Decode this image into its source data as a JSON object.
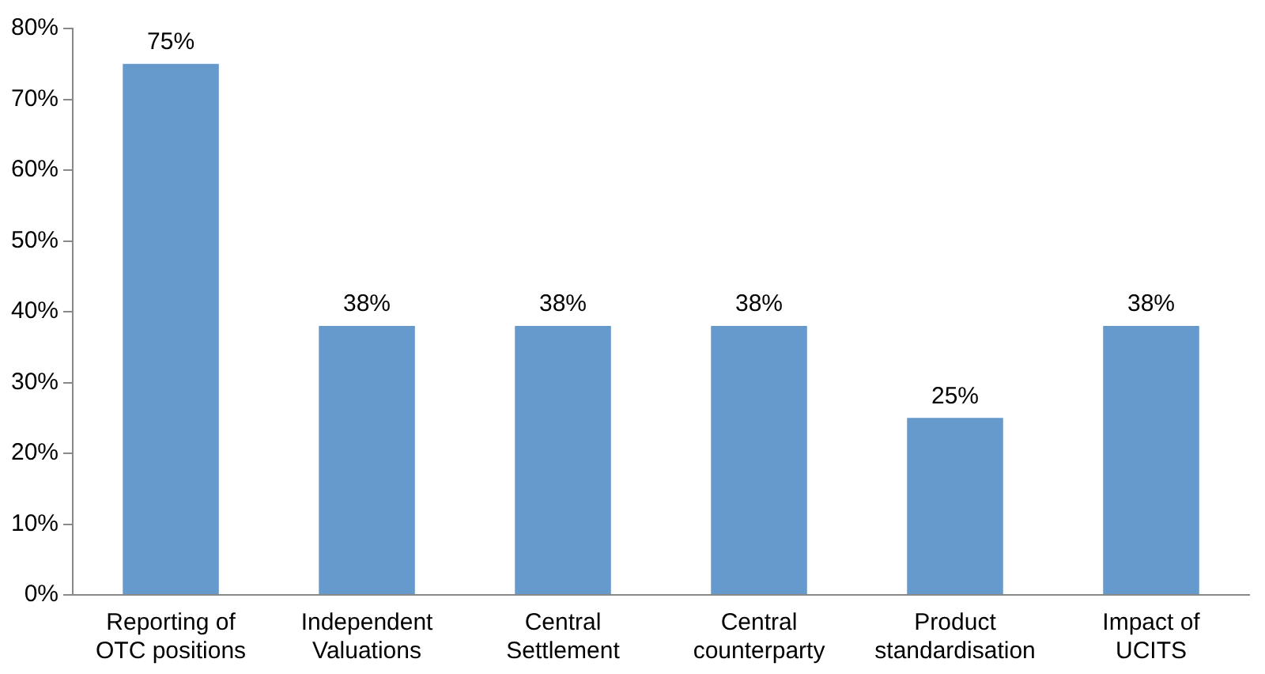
{
  "chart_data": {
    "type": "bar",
    "categories": [
      "Reporting of OTC positions",
      "Independent Valuations",
      "Central Settlement",
      "Central counterparty",
      "Product standardisation",
      "Impact of UCITS"
    ],
    "values": [
      75,
      38,
      38,
      38,
      25,
      38
    ],
    "color": "#6699cc",
    "ylim": [
      0,
      80
    ],
    "yticks": [
      {
        "value": 0,
        "label": "0%"
      },
      {
        "value": 10,
        "label": "10%"
      },
      {
        "value": 20,
        "label": "20%"
      },
      {
        "value": 30,
        "label": "30%"
      },
      {
        "value": 40,
        "label": "40%"
      },
      {
        "value": 50,
        "label": "50%"
      },
      {
        "value": 60,
        "label": "60%"
      },
      {
        "value": 70,
        "label": "70%"
      },
      {
        "value": 80,
        "label": "80%"
      }
    ],
    "value_labels": [
      "75%",
      "38%",
      "38%",
      "38%",
      "25%",
      "38%"
    ],
    "grid": false,
    "legend": false
  }
}
